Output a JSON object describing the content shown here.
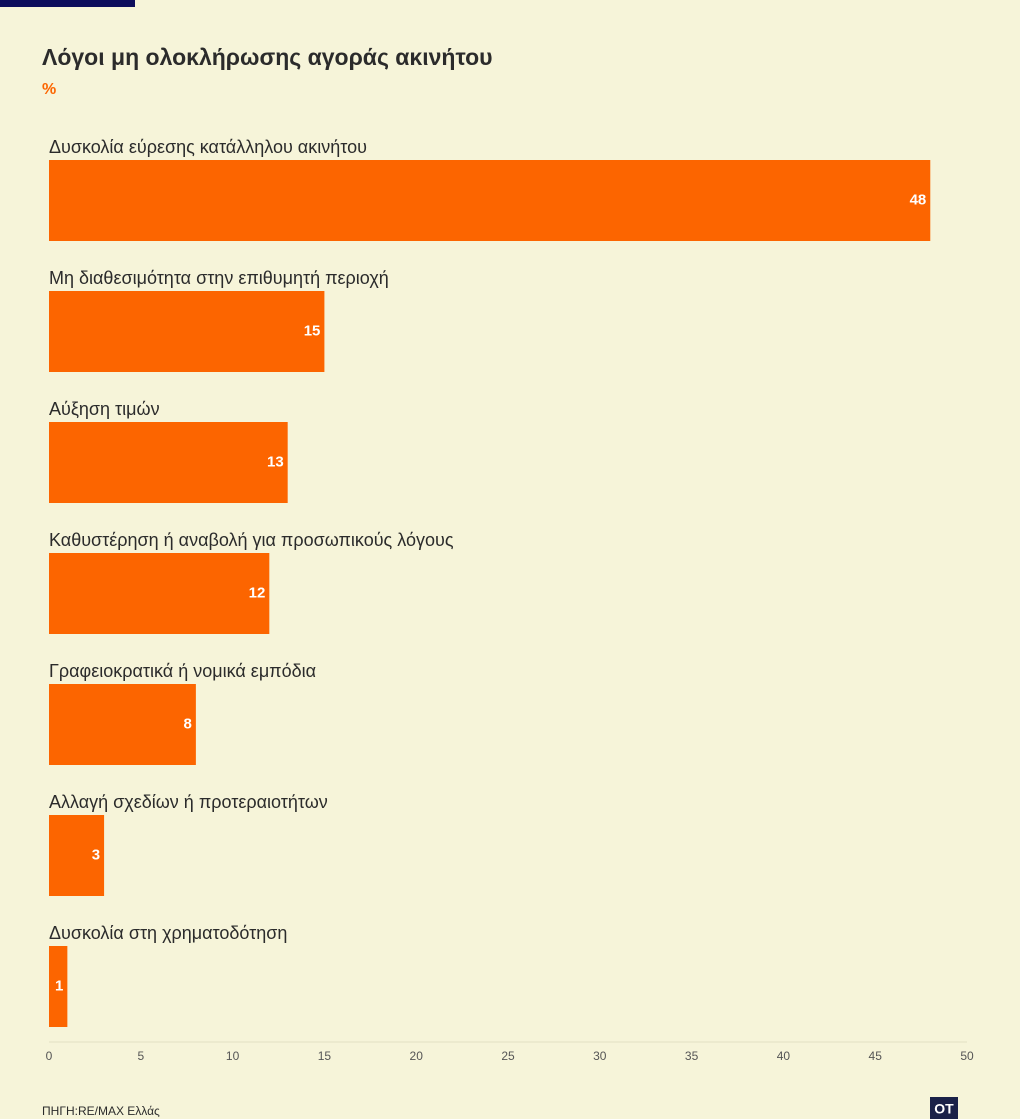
{
  "chart_data": {
    "type": "bar",
    "orientation": "horizontal",
    "title": "Λόγοι μη ολοκλήρωσης αγοράς ακινήτου",
    "subtitle": "%",
    "categories": [
      "Δυσκολία εύρεσης κατάλληλου ακινήτου",
      "Μη διαθεσιμότητα στην επιθυμητή περιοχή",
      "Αύξηση τιμών",
      "Καθυστέρηση ή αναβολή για προσωπικούς λόγους",
      "Γραφειοκρατικά ή νομικά εμπόδια",
      "Αλλαγή σχεδίων ή προτεραιοτήτων",
      "Δυσκολία στη χρηματοδότηση"
    ],
    "values": [
      48,
      15,
      13,
      12,
      8,
      3,
      1
    ],
    "color": "#fc6500",
    "xlim": [
      0,
      50
    ],
    "xticks": [
      0,
      5,
      10,
      15,
      20,
      25,
      30,
      35,
      40,
      45,
      50
    ],
    "grid": false
  },
  "source": "ΠΗΓΗ:RE/MAX Ελλάς",
  "logo": "OT"
}
